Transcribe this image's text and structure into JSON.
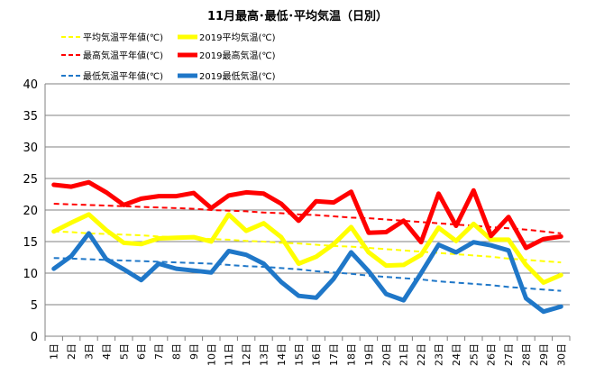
{
  "chart_data": {
    "type": "line",
    "title": "11月最高･最低･平均気温（日別）",
    "xlabel": "",
    "ylabel": "",
    "ylim": [
      0,
      40
    ],
    "yticks": [
      0,
      5,
      10,
      15,
      20,
      25,
      30,
      35,
      40
    ],
    "grid": true,
    "legend_position": "top-left",
    "categories": [
      "1日",
      "2日",
      "3日",
      "4日",
      "5日",
      "6日",
      "7日",
      "8日",
      "9日",
      "10日",
      "11日",
      "12日",
      "13日",
      "14日",
      "15日",
      "16日",
      "17日",
      "18日",
      "19日",
      "20日",
      "21日",
      "22日",
      "23日",
      "24日",
      "25日",
      "26日",
      "27日",
      "28日",
      "29日",
      "30日"
    ],
    "series": [
      {
        "name": "平均気温平年値(℃)",
        "color": "#ffff00",
        "style": "dashed",
        "values": [
          16.6,
          16.5,
          16.3,
          16.2,
          16.1,
          16.0,
          15.8,
          15.7,
          15.6,
          15.4,
          15.3,
          15.1,
          15.0,
          14.8,
          14.7,
          14.5,
          14.3,
          14.2,
          14.0,
          13.8,
          13.6,
          13.4,
          13.2,
          13.0,
          12.8,
          12.6,
          12.3,
          12.1,
          11.9,
          11.7
        ]
      },
      {
        "name": "2019平均気温(℃)",
        "color": "#ffff00",
        "style": "solid",
        "values": [
          16.6,
          18.0,
          19.3,
          16.8,
          14.8,
          14.6,
          15.5,
          15.6,
          15.7,
          15.0,
          19.3,
          16.7,
          17.9,
          15.7,
          11.5,
          12.6,
          14.6,
          17.3,
          13.3,
          11.2,
          11.3,
          12.9,
          17.2,
          15.1,
          17.8,
          15.3,
          15.3,
          11.3,
          8.5,
          9.7
        ]
      },
      {
        "name": "最高気温平年値(℃)",
        "color": "#ff0000",
        "style": "dashed",
        "values": [
          21.0,
          20.9,
          20.8,
          20.7,
          20.6,
          20.5,
          20.4,
          20.3,
          20.2,
          20.0,
          19.9,
          19.8,
          19.6,
          19.5,
          19.3,
          19.2,
          19.0,
          18.8,
          18.7,
          18.5,
          18.3,
          18.1,
          17.9,
          17.7,
          17.5,
          17.3,
          17.1,
          16.9,
          16.6,
          16.3
        ]
      },
      {
        "name": "2019最高気温(℃)",
        "color": "#ff0000",
        "style": "solid",
        "values": [
          24.0,
          23.7,
          24.4,
          22.8,
          20.8,
          21.8,
          22.2,
          22.2,
          22.7,
          20.3,
          22.3,
          22.8,
          22.6,
          21.0,
          18.3,
          21.4,
          21.2,
          22.9,
          16.4,
          16.5,
          18.3,
          14.9,
          22.6,
          17.5,
          23.1,
          15.9,
          18.9,
          14.0,
          15.4,
          15.8
        ]
      },
      {
        "name": "最低気温平年値(℃)",
        "color": "#1f77c8",
        "style": "dashed",
        "values": [
          12.4,
          12.3,
          12.2,
          12.1,
          12.0,
          11.9,
          11.8,
          11.7,
          11.6,
          11.5,
          11.3,
          11.1,
          11.0,
          10.8,
          10.6,
          10.3,
          10.1,
          9.9,
          9.6,
          9.4,
          9.2,
          9.0,
          8.7,
          8.5,
          8.3,
          8.1,
          7.8,
          7.6,
          7.4,
          7.2
        ]
      },
      {
        "name": "2019最低気温(℃)",
        "color": "#1f77c8",
        "style": "solid",
        "values": [
          10.7,
          12.7,
          16.3,
          12.2,
          10.6,
          8.9,
          11.5,
          10.7,
          10.4,
          10.1,
          13.5,
          12.9,
          11.5,
          8.6,
          6.4,
          6.1,
          9.1,
          13.3,
          10.3,
          6.7,
          5.7,
          10.0,
          14.5,
          13.3,
          14.9,
          14.4,
          13.6,
          6.0,
          3.9,
          4.7
        ]
      }
    ],
    "legend_order": [
      0,
      1,
      2,
      3,
      4,
      5
    ]
  }
}
